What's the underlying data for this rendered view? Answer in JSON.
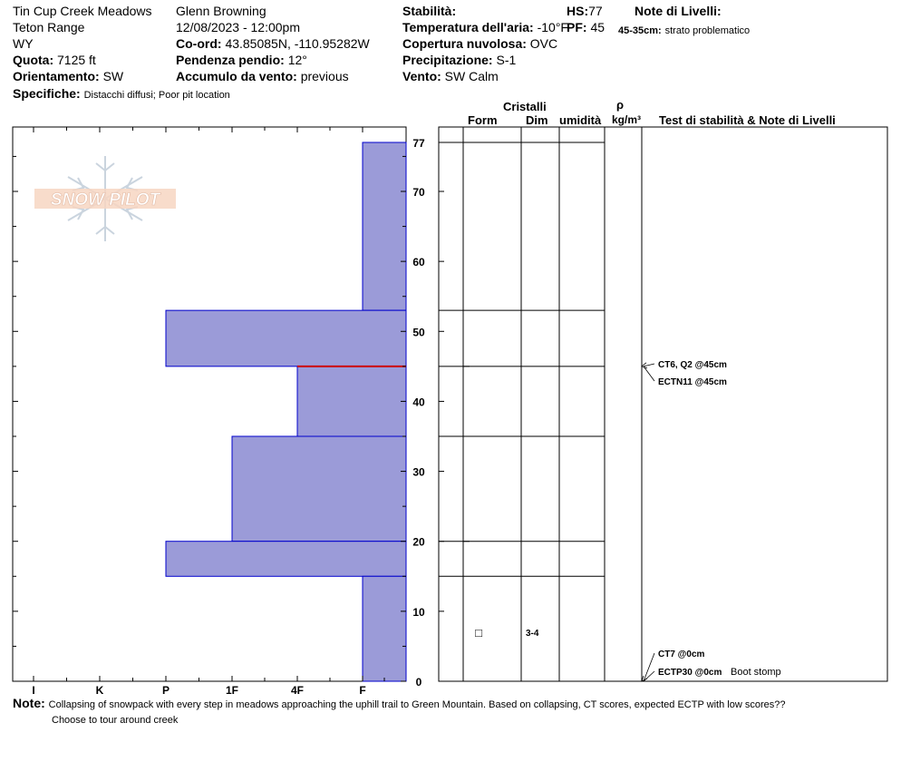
{
  "header": {
    "location": "Tin Cup Creek Meadows",
    "range": "Teton Range",
    "state": "WY",
    "elevation_label": "Quota:",
    "elevation_value": "7125 ft",
    "aspect_label": "Orientamento:",
    "aspect_value": "SW",
    "specifics_label": "Specifiche:",
    "specifics_value": "Distacchi diffusi; Poor pit location",
    "observer": "Glenn Browning",
    "datetime": "12/08/2023 - 12:00pm",
    "coord_label": "Co-ord:",
    "coord_value": "43.85085N, -110.95282W",
    "slope_label": "Pendenza pendio:",
    "slope_value": "12°",
    "wind_loading_label": "Accumulo da vento:",
    "wind_loading_value": "previous",
    "stability_label": "Stabilità:",
    "air_temp_label": "Temperatura dell'aria:",
    "air_temp_value": "-10°F",
    "cloud_label": "Copertura nuvolosa:",
    "cloud_value": "OVC",
    "precip_label": "Precipitazione:",
    "precip_value": "S-1",
    "wind_label": "Vento:",
    "wind_value": "SW Calm",
    "hs_label": "HS:",
    "hs_value": "77",
    "pf_label": "PF:",
    "pf_value": "45",
    "layer_notes_label": "Note di Livelli:",
    "layer_note_depth": "45-35cm:",
    "layer_note_text": "strato problematico"
  },
  "columns": {
    "crystals": "Cristalli",
    "form": "Form",
    "dim": "Dim",
    "humidity": "umidità",
    "rho": "ρ",
    "density_unit": "kg/m³",
    "tests": "Test di stabilità & Note di Livelli"
  },
  "logo_text": "SNOW PILOT",
  "chart_data": {
    "type": "bar",
    "orientation": "horizontal",
    "x_categories": [
      "I",
      "K",
      "P",
      "1F",
      "4F",
      "F"
    ],
    "y_ticks": [
      0,
      10,
      20,
      30,
      40,
      50,
      60,
      70,
      77
    ],
    "ylim": [
      0,
      77
    ],
    "layers": [
      {
        "top": 77,
        "bottom": 53,
        "hardness": "F"
      },
      {
        "top": 53,
        "bottom": 45,
        "hardness": "P"
      },
      {
        "top": 45,
        "bottom": 35,
        "hardness": "4F"
      },
      {
        "top": 35,
        "bottom": 20,
        "hardness": "1F"
      },
      {
        "top": 20,
        "bottom": 15,
        "hardness": "P"
      },
      {
        "top": 15,
        "bottom": 0,
        "hardness": "F"
      }
    ],
    "layer_boundaries": [
      77,
      53,
      45,
      35,
      20,
      15
    ],
    "problem_layer_depth": 45,
    "crystal_obs": {
      "depth": 7,
      "form": "□",
      "size": "3-4"
    },
    "tests": [
      {
        "label": "CT6, Q2 @45cm",
        "depth": 45
      },
      {
        "label": "ECTN11 @45cm",
        "depth": 45
      },
      {
        "label": "CT7 @0cm",
        "depth": 0
      },
      {
        "label": "ECTP30 @0cm",
        "depth": 0,
        "note": "Boot stomp"
      }
    ],
    "bar_color": "#9b9bd8",
    "bar_edge_color": "#0000cc",
    "problem_line_color": "#cc0000"
  },
  "notes": {
    "label": "Note:",
    "line1": "Collapsing of snowpack with every step in meadows approaching the uphill trail to Green Mountain. Based on collapsing, CT scores, expected ECTP with low scores??",
    "line2": "Choose to tour around creek"
  }
}
